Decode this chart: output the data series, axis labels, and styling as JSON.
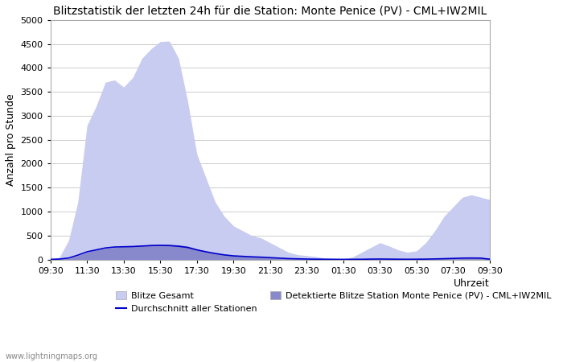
{
  "title": "Blitzstatistik der letzten 24h für die Station: Monte Penice (PV) - CML+IW2MIL",
  "xlabel": "Uhrzeit",
  "ylabel": "Anzahl pro Stunde",
  "ylim": [
    0,
    5000
  ],
  "yticks": [
    0,
    500,
    1000,
    1500,
    2000,
    2500,
    3000,
    3500,
    4000,
    4500,
    5000
  ],
  "x_labels": [
    "09:30",
    "11:30",
    "13:30",
    "15:30",
    "17:30",
    "19:30",
    "21:30",
    "23:30",
    "01:30",
    "03:30",
    "05:30",
    "07:30",
    "09:30"
  ],
  "background_color": "#ffffff",
  "plot_bg_color": "#ffffff",
  "grid_color": "#cccccc",
  "fill_light_color": "#c8ccf0",
  "fill_dark_color": "#8888cc",
  "line_color": "#0000cc",
  "watermark": "www.lightningmaps.org",
  "title_fontsize": 10,
  "tick_fontsize": 8,
  "label_fontsize": 9,
  "times_count": 49,
  "total_lightning": [
    0,
    50,
    400,
    1200,
    2800,
    3200,
    3700,
    3750,
    3600,
    3800,
    4200,
    4400,
    4550,
    4560,
    4200,
    3300,
    2200,
    1700,
    1200,
    900,
    700,
    600,
    500,
    450,
    350,
    250,
    150,
    100,
    80,
    60,
    30,
    20,
    10,
    50,
    150,
    250,
    350,
    280,
    200,
    150,
    180,
    350,
    600,
    900,
    1100,
    1300,
    1350,
    1300,
    1250
  ],
  "station_lightning": [
    0,
    5,
    20,
    80,
    150,
    200,
    230,
    250,
    270,
    280,
    300,
    310,
    320,
    315,
    305,
    280,
    220,
    170,
    130,
    100,
    80,
    70,
    60,
    50,
    40,
    30,
    20,
    15,
    10,
    8,
    5,
    3,
    2,
    3,
    5,
    8,
    10,
    8,
    6,
    5,
    6,
    8,
    12,
    18,
    25,
    30,
    32,
    30,
    28
  ],
  "avg_stations": [
    2,
    8,
    30,
    90,
    160,
    200,
    240,
    260,
    265,
    270,
    280,
    290,
    295,
    290,
    275,
    250,
    200,
    160,
    125,
    95,
    75,
    65,
    55,
    48,
    38,
    28,
    18,
    13,
    8,
    6,
    4,
    3,
    2,
    3,
    4,
    7,
    9,
    7,
    5,
    4,
    5,
    7,
    11,
    16,
    22,
    28,
    30,
    28,
    5
  ],
  "legend_items": [
    {
      "type": "patch",
      "color": "#c8ccf0",
      "label": "Blitze Gesamt"
    },
    {
      "type": "line",
      "color": "#0000cc",
      "label": "Durchschnitt aller Stationen"
    },
    {
      "type": "patch",
      "color": "#8888cc",
      "label": "Detektierte Blitze Station Monte Penice (PV) - CML+IW2MIL"
    }
  ]
}
